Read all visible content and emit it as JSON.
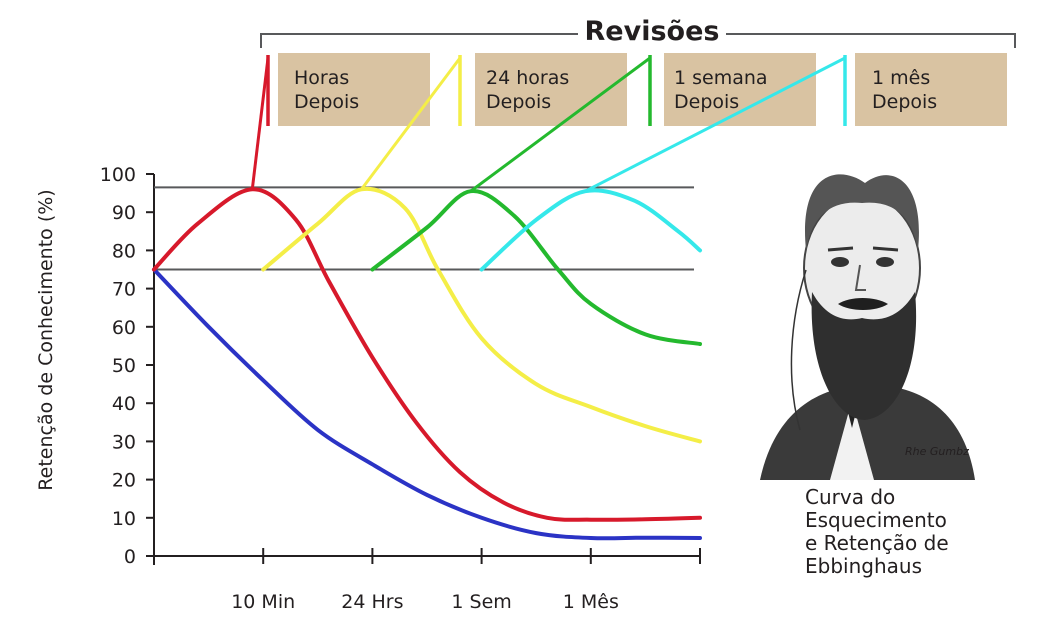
{
  "reviews_header": "Revisões",
  "review_boxes": [
    {
      "line1": "Horas",
      "line2": "Depois",
      "color": "#d7192b"
    },
    {
      "line1": "24 horas",
      "line2": "Depois",
      "color": "#f4ee47"
    },
    {
      "line1": "1 semana",
      "line2": "Depois",
      "color": "#24b92e"
    },
    {
      "line1": "1 mês",
      "line2": "Depois",
      "color": "#35e8ea"
    }
  ],
  "box_color": "#d9c3a2",
  "caption": [
    "Curva do",
    "Esquecimento",
    "e Retenção de",
    "Ebbinghaus"
  ],
  "portrait_signature": "Rhe Gumbz",
  "chart_data": {
    "type": "line",
    "ylabel": "Retenção de Conhecimento (%)",
    "xlabel": "",
    "ylim": [
      0,
      100
    ],
    "yticks": [
      0,
      10,
      20,
      30,
      40,
      50,
      60,
      70,
      80,
      90,
      100
    ],
    "x_ticks": [
      {
        "x": 1,
        "label": "10 Min"
      },
      {
        "x": 2,
        "label": "24 Hrs"
      },
      {
        "x": 3,
        "label": "1 Sem"
      },
      {
        "x": 4,
        "label": "1 Mês"
      }
    ],
    "xlim": [
      0,
      5
    ],
    "reference_lines": [
      96.5,
      75
    ],
    "series": [
      {
        "color": "#2b33c5",
        "points": [
          [
            0,
            75
          ],
          [
            0.5,
            60
          ],
          [
            1,
            46
          ],
          [
            1.5,
            33
          ],
          [
            2,
            24
          ],
          [
            2.5,
            16
          ],
          [
            3,
            10
          ],
          [
            3.5,
            6
          ],
          [
            4,
            4.7
          ],
          [
            4.5,
            4.8
          ],
          [
            5,
            4.7
          ]
        ]
      },
      {
        "color": "#d7192b",
        "points": [
          [
            0,
            75
          ],
          [
            0.4,
            87
          ],
          [
            0.9,
            96
          ],
          [
            1.3,
            88
          ],
          [
            1.6,
            72
          ],
          [
            2,
            52
          ],
          [
            2.4,
            35
          ],
          [
            2.8,
            22
          ],
          [
            3.2,
            14
          ],
          [
            3.6,
            10
          ],
          [
            4,
            9.5
          ],
          [
            4.5,
            9.6
          ],
          [
            5,
            10
          ]
        ]
      },
      {
        "color": "#f4ee47",
        "points": [
          [
            1,
            75
          ],
          [
            1.5,
            87
          ],
          [
            1.9,
            96
          ],
          [
            2.3,
            91
          ],
          [
            2.6,
            75
          ],
          [
            3,
            57
          ],
          [
            3.5,
            45
          ],
          [
            4,
            39
          ],
          [
            4.5,
            34
          ],
          [
            5,
            30
          ]
        ]
      },
      {
        "color": "#24b92e",
        "points": [
          [
            2,
            75
          ],
          [
            2.5,
            86
          ],
          [
            2.9,
            95.5
          ],
          [
            3.3,
            89
          ],
          [
            3.7,
            75
          ],
          [
            4,
            66
          ],
          [
            4.5,
            58
          ],
          [
            5,
            55.5
          ]
        ]
      },
      {
        "color": "#35e8ea",
        "points": [
          [
            3,
            75
          ],
          [
            3.5,
            88
          ],
          [
            3.95,
            95.5
          ],
          [
            4.4,
            93
          ],
          [
            4.8,
            85
          ],
          [
            5,
            80
          ]
        ]
      }
    ],
    "review_links": [
      {
        "from": [
          0.9,
          96
        ],
        "to": 0
      },
      {
        "from": [
          1.9,
          96
        ],
        "to": 1
      },
      {
        "from": [
          2.9,
          95.5
        ],
        "to": 2
      },
      {
        "from": [
          3.95,
          95.5
        ],
        "to": 3
      }
    ]
  }
}
